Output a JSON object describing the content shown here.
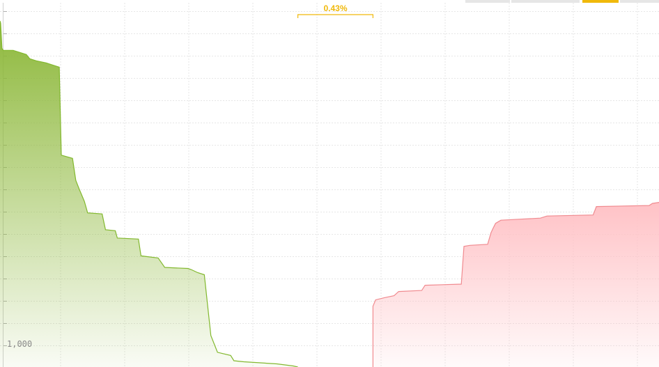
{
  "tabs": [
    {
      "label": "",
      "active": false
    },
    {
      "label": "",
      "active": false
    },
    {
      "label": "",
      "active": true
    },
    {
      "label": "",
      "active": false
    }
  ],
  "colors": {
    "bid_line": "#82b82e",
    "bid_fill_top": "#8db83a",
    "ask_line": "#f08a8f",
    "ask_fill_top": "#ffc2c6",
    "spread": "#f0b90b",
    "grid": "#e4e4e4",
    "active_tab": "#f0b90b"
  },
  "chart_data": {
    "type": "area",
    "title": "",
    "xlabel": "",
    "ylabel": "",
    "spread_label": "0.43%",
    "y_tick_labels": [
      "1,000"
    ],
    "grid": true,
    "series": [
      {
        "side": "bid",
        "points": [
          [
            0,
            3800
          ],
          [
            1,
            3780
          ],
          [
            3,
            3540
          ],
          [
            5,
            3520
          ],
          [
            20,
            3520
          ],
          [
            30,
            3500
          ],
          [
            40,
            3480
          ],
          [
            45,
            3440
          ],
          [
            55,
            3420
          ],
          [
            70,
            3400
          ],
          [
            80,
            3380
          ],
          [
            90,
            3360
          ],
          [
            93,
            2520
          ],
          [
            110,
            2490
          ],
          [
            115,
            2280
          ],
          [
            120,
            2200
          ],
          [
            128,
            2080
          ],
          [
            133,
            1970
          ],
          [
            155,
            1960
          ],
          [
            160,
            1810
          ],
          [
            175,
            1800
          ],
          [
            178,
            1730
          ],
          [
            210,
            1720
          ],
          [
            214,
            1560
          ],
          [
            240,
            1540
          ],
          [
            250,
            1450
          ],
          [
            285,
            1440
          ],
          [
            290,
            1430
          ],
          [
            300,
            1400
          ],
          [
            310,
            1380
          ],
          [
            320,
            800
          ],
          [
            330,
            640
          ],
          [
            350,
            610
          ],
          [
            355,
            560
          ],
          [
            370,
            550
          ],
          [
            420,
            530
          ],
          [
            445,
            510
          ],
          [
            452,
            500
          ]
        ]
      },
      {
        "side": "ask",
        "points": [
          [
            566,
            500
          ],
          [
            566,
            1080
          ],
          [
            570,
            1140
          ],
          [
            583,
            1160
          ],
          [
            598,
            1180
          ],
          [
            605,
            1220
          ],
          [
            640,
            1230
          ],
          [
            645,
            1280
          ],
          [
            700,
            1290
          ],
          [
            704,
            1650
          ],
          [
            713,
            1660
          ],
          [
            740,
            1670
          ],
          [
            745,
            1780
          ],
          [
            748,
            1820
          ],
          [
            752,
            1870
          ],
          [
            760,
            1900
          ],
          [
            790,
            1910
          ],
          [
            820,
            1920
          ],
          [
            830,
            1940
          ],
          [
            900,
            1950
          ],
          [
            905,
            2030
          ],
          [
            985,
            2040
          ],
          [
            990,
            2060
          ],
          [
            1000,
            2070
          ]
        ]
      }
    ]
  }
}
